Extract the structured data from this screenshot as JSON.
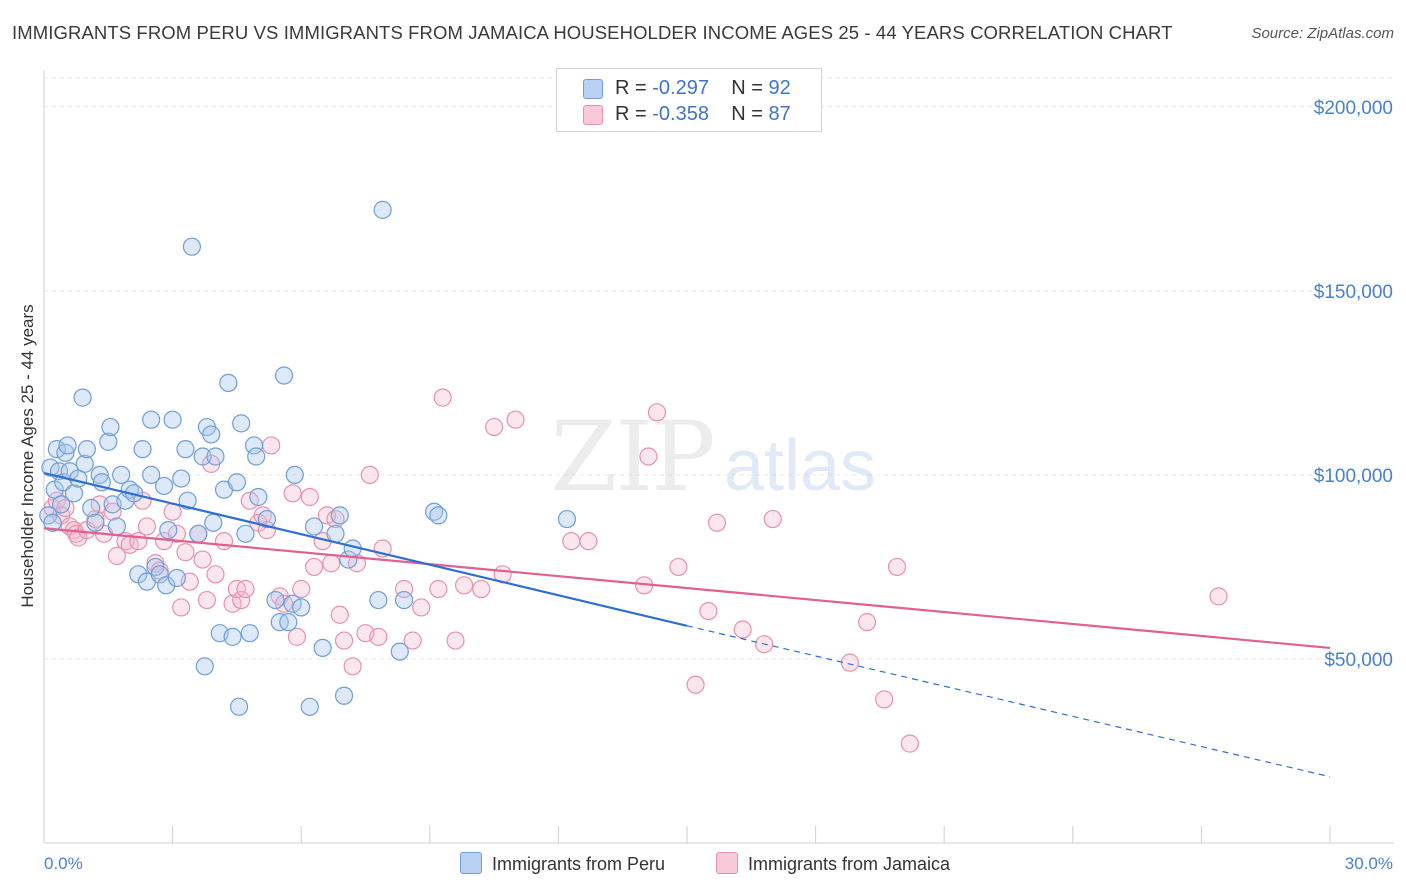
{
  "title": "IMMIGRANTS FROM PERU VS IMMIGRANTS FROM JAMAICA HOUSEHOLDER INCOME AGES 25 - 44 YEARS CORRELATION CHART",
  "source": "Source: ZipAtlas.com",
  "watermark": {
    "zip": "ZIP",
    "atlas": "atlas"
  },
  "colors": {
    "peru_fill": "#a9c6ee",
    "peru_stroke": "#6f9edb",
    "peru_line": "#2f6fd1",
    "jamaica_fill": "#f5b8cb",
    "jamaica_stroke": "#e891ad",
    "jamaica_line": "#e0608f",
    "tick_text": "#4a7fcf",
    "grid": "#e6e6e6"
  },
  "legend": {
    "peru": {
      "r_label": "R = ",
      "r_value": "-0.297",
      "n_label": "N = ",
      "n_value": "92"
    },
    "jamaica": {
      "r_label": "R = ",
      "r_value": "-0.358",
      "n_label": "N = ",
      "n_value": "87"
    }
  },
  "bottom_legend": {
    "peru": "Immigrants from Peru",
    "jamaica": "Immigrants from Jamaica"
  },
  "chart_data": {
    "type": "scatter",
    "title": "IMMIGRANTS FROM PERU VS IMMIGRANTS FROM JAMAICA HOUSEHOLDER INCOME AGES 25 - 44 YEARS CORRELATION CHART",
    "xlabel": "",
    "ylabel": "Householder Income Ages 25 - 44 years",
    "xlim": [
      0,
      30
    ],
    "ylim": [
      0,
      210000
    ],
    "x_tick_labels": [
      "0.0%",
      "30.0%"
    ],
    "y_ticks": [
      50000,
      100000,
      150000,
      200000
    ],
    "y_tick_labels": [
      "$50,000",
      "$100,000",
      "$150,000",
      "$200,000"
    ],
    "grid": "horizontal dashed",
    "legend_position": "top-center",
    "series": [
      {
        "name": "Immigrants from Peru",
        "R": -0.297,
        "N": 92,
        "trend": {
          "x0": 0,
          "y0": 100500,
          "x1": 15,
          "y1": 59000,
          "dashed_to_x": 30,
          "dashed_to_y": 18000
        },
        "points": [
          [
            0.1,
            89000
          ],
          [
            0.15,
            102000
          ],
          [
            0.2,
            87000
          ],
          [
            0.25,
            96000
          ],
          [
            0.3,
            107000
          ],
          [
            0.35,
            101000
          ],
          [
            0.4,
            92000
          ],
          [
            0.45,
            98000
          ],
          [
            0.5,
            106000
          ],
          [
            0.55,
            108000
          ],
          [
            0.6,
            101000
          ],
          [
            0.7,
            95000
          ],
          [
            0.8,
            99000
          ],
          [
            0.9,
            121000
          ],
          [
            0.95,
            103000
          ],
          [
            1.0,
            107000
          ],
          [
            1.1,
            91000
          ],
          [
            1.2,
            87000
          ],
          [
            1.3,
            100000
          ],
          [
            1.35,
            98000
          ],
          [
            1.5,
            109000
          ],
          [
            1.55,
            113000
          ],
          [
            1.6,
            92000
          ],
          [
            1.7,
            86000
          ],
          [
            1.8,
            100000
          ],
          [
            1.9,
            93000
          ],
          [
            2.0,
            96000
          ],
          [
            2.1,
            95000
          ],
          [
            2.2,
            73000
          ],
          [
            2.3,
            107000
          ],
          [
            2.4,
            71000
          ],
          [
            2.5,
            100000
          ],
          [
            2.5,
            115000
          ],
          [
            2.6,
            75000
          ],
          [
            2.7,
            73000
          ],
          [
            2.8,
            97000
          ],
          [
            2.85,
            70000
          ],
          [
            2.9,
            85000
          ],
          [
            3.0,
            115000
          ],
          [
            3.1,
            72000
          ],
          [
            3.2,
            99000
          ],
          [
            3.3,
            107000
          ],
          [
            3.35,
            93000
          ],
          [
            3.45,
            162000
          ],
          [
            3.6,
            84000
          ],
          [
            3.7,
            105000
          ],
          [
            3.75,
            48000
          ],
          [
            3.8,
            113000
          ],
          [
            3.9,
            111000
          ],
          [
            3.95,
            87000
          ],
          [
            4.0,
            105000
          ],
          [
            4.1,
            57000
          ],
          [
            4.2,
            96000
          ],
          [
            4.3,
            125000
          ],
          [
            4.4,
            56000
          ],
          [
            4.5,
            98000
          ],
          [
            4.55,
            37000
          ],
          [
            4.6,
            114000
          ],
          [
            4.7,
            84000
          ],
          [
            4.8,
            57000
          ],
          [
            4.9,
            108000
          ],
          [
            4.95,
            105000
          ],
          [
            5.0,
            94000
          ],
          [
            5.2,
            88000
          ],
          [
            5.4,
            66000
          ],
          [
            5.5,
            60000
          ],
          [
            5.6,
            127000
          ],
          [
            5.7,
            60000
          ],
          [
            5.8,
            65000
          ],
          [
            5.85,
            100000
          ],
          [
            6.0,
            64000
          ],
          [
            6.2,
            37000
          ],
          [
            6.3,
            86000
          ],
          [
            6.5,
            53000
          ],
          [
            6.8,
            84000
          ],
          [
            6.9,
            89000
          ],
          [
            7.0,
            40000
          ],
          [
            7.1,
            77000
          ],
          [
            7.2,
            80000
          ],
          [
            7.8,
            66000
          ],
          [
            7.9,
            172000
          ],
          [
            8.3,
            52000
          ],
          [
            8.4,
            66000
          ],
          [
            9.1,
            90000
          ],
          [
            9.2,
            89000
          ],
          [
            12.2,
            88000
          ]
        ]
      },
      {
        "name": "Immigrants from Jamaica",
        "R": -0.358,
        "N": 87,
        "trend": {
          "x0": 0,
          "y0": 85500,
          "x1": 30,
          "y1": 53000
        },
        "points": [
          [
            0.2,
            91000
          ],
          [
            0.3,
            93000
          ],
          [
            0.4,
            89000
          ],
          [
            0.5,
            91000
          ],
          [
            0.6,
            86000
          ],
          [
            0.7,
            85000
          ],
          [
            0.75,
            84000
          ],
          [
            0.8,
            83000
          ],
          [
            1.0,
            85000
          ],
          [
            1.2,
            88000
          ],
          [
            1.3,
            92000
          ],
          [
            1.4,
            84000
          ],
          [
            1.6,
            90000
          ],
          [
            1.7,
            78000
          ],
          [
            1.9,
            82000
          ],
          [
            2.0,
            81000
          ],
          [
            2.2,
            82000
          ],
          [
            2.3,
            93000
          ],
          [
            2.4,
            86000
          ],
          [
            2.6,
            76000
          ],
          [
            2.7,
            74000
          ],
          [
            2.8,
            82000
          ],
          [
            3.0,
            90000
          ],
          [
            3.1,
            84000
          ],
          [
            3.2,
            64000
          ],
          [
            3.3,
            79000
          ],
          [
            3.4,
            71000
          ],
          [
            3.6,
            84000
          ],
          [
            3.7,
            77000
          ],
          [
            3.8,
            66000
          ],
          [
            3.9,
            103000
          ],
          [
            4.0,
            73000
          ],
          [
            4.2,
            82000
          ],
          [
            4.4,
            65000
          ],
          [
            4.5,
            69000
          ],
          [
            4.6,
            66000
          ],
          [
            4.7,
            69000
          ],
          [
            4.8,
            93000
          ],
          [
            5.0,
            87000
          ],
          [
            5.1,
            89000
          ],
          [
            5.2,
            85000
          ],
          [
            5.3,
            108000
          ],
          [
            5.5,
            67000
          ],
          [
            5.6,
            65000
          ],
          [
            5.8,
            95000
          ],
          [
            5.9,
            56000
          ],
          [
            6.0,
            69000
          ],
          [
            6.2,
            94000
          ],
          [
            6.3,
            75000
          ],
          [
            6.5,
            82000
          ],
          [
            6.6,
            89000
          ],
          [
            6.7,
            76000
          ],
          [
            6.8,
            88000
          ],
          [
            6.9,
            62000
          ],
          [
            7.0,
            55000
          ],
          [
            7.2,
            48000
          ],
          [
            7.3,
            76000
          ],
          [
            7.5,
            57000
          ],
          [
            7.6,
            100000
          ],
          [
            7.8,
            56000
          ],
          [
            7.9,
            80000
          ],
          [
            8.4,
            69000
          ],
          [
            8.6,
            55000
          ],
          [
            8.8,
            64000
          ],
          [
            9.2,
            69000
          ],
          [
            9.3,
            121000
          ],
          [
            9.6,
            55000
          ],
          [
            9.8,
            70000
          ],
          [
            10.2,
            69000
          ],
          [
            10.5,
            113000
          ],
          [
            10.7,
            73000
          ],
          [
            11.0,
            115000
          ],
          [
            12.3,
            82000
          ],
          [
            12.7,
            82000
          ],
          [
            14.0,
            70000
          ],
          [
            14.1,
            105000
          ],
          [
            14.3,
            117000
          ],
          [
            14.8,
            75000
          ],
          [
            15.2,
            43000
          ],
          [
            15.5,
            63000
          ],
          [
            15.7,
            87000
          ],
          [
            16.3,
            58000
          ],
          [
            16.8,
            54000
          ],
          [
            17.0,
            88000
          ],
          [
            18.8,
            49000
          ],
          [
            19.2,
            60000
          ],
          [
            19.6,
            39000
          ],
          [
            19.9,
            75000
          ],
          [
            20.2,
            27000
          ],
          [
            27.4,
            67000
          ]
        ]
      }
    ]
  }
}
